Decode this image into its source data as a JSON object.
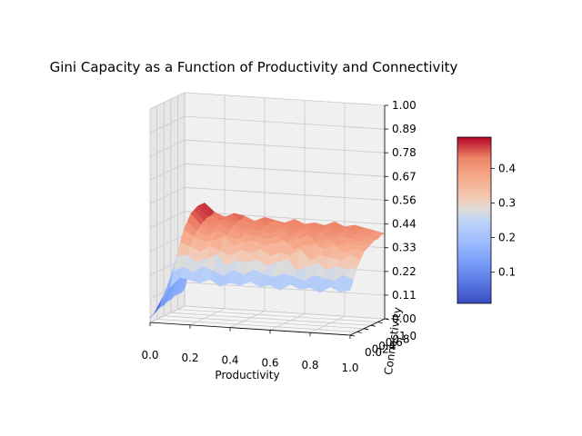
{
  "chart_data": {
    "type": "surface3d",
    "title": "Gini Capacity as a Function of Productivity and Connectivity",
    "xlabel": "Productivity",
    "ylabel": "Connectivity",
    "zlabel": "",
    "xlim": [
      0.0,
      1.0
    ],
    "ylim": [
      0.0,
      1.0
    ],
    "zlim": [
      0.0,
      1.0
    ],
    "x_ticks": [
      "0.0",
      "0.2",
      "0.4",
      "0.6",
      "0.8",
      "1.0"
    ],
    "y_ticks": [
      "0.0",
      "0.2",
      "0.4",
      "0.6",
      "0.8",
      "1.0"
    ],
    "z_ticks": [
      "0.00",
      "0.11",
      "0.22",
      "0.33",
      "0.44",
      "0.56",
      "0.67",
      "0.78",
      "0.89",
      "1.00"
    ],
    "colormap": "coolwarm",
    "colorbar": {
      "min": 0.01,
      "max": 0.49,
      "ticks": [
        "0.1",
        "0.2",
        "0.3",
        "0.4"
      ],
      "tick_values": [
        0.1,
        0.2,
        0.3,
        0.4
      ]
    },
    "surface": {
      "description_values": {
        "x_grid": [
          0.0,
          0.05,
          0.1,
          0.15,
          0.2,
          0.25,
          0.3,
          0.35,
          0.4,
          0.45,
          0.5,
          0.55,
          0.6,
          0.65,
          0.7,
          0.75,
          0.8,
          0.85,
          0.9,
          0.95,
          1.0
        ],
        "y_grid": [
          0.0,
          0.1,
          0.2,
          0.3,
          0.4,
          0.5,
          0.6,
          0.7,
          0.8,
          0.9,
          1.0
        ],
        "z_values": [
          [
            0.02,
            0.08,
            0.17,
            0.22,
            0.21,
            0.2,
            0.22,
            0.19,
            0.21,
            0.2,
            0.22,
            0.2,
            0.21,
            0.19,
            0.22,
            0.2,
            0.21,
            0.19,
            0.22,
            0.2,
            0.21
          ],
          [
            0.03,
            0.12,
            0.24,
            0.26,
            0.24,
            0.27,
            0.25,
            0.23,
            0.26,
            0.24,
            0.27,
            0.25,
            0.24,
            0.26,
            0.25,
            0.23,
            0.26,
            0.25,
            0.24,
            0.27,
            0.25
          ],
          [
            0.04,
            0.15,
            0.3,
            0.31,
            0.28,
            0.3,
            0.32,
            0.27,
            0.3,
            0.29,
            0.31,
            0.28,
            0.3,
            0.32,
            0.27,
            0.29,
            0.31,
            0.28,
            0.3,
            0.29,
            0.3
          ],
          [
            0.05,
            0.18,
            0.36,
            0.34,
            0.32,
            0.35,
            0.33,
            0.31,
            0.34,
            0.33,
            0.35,
            0.32,
            0.34,
            0.33,
            0.36,
            0.31,
            0.34,
            0.33,
            0.32,
            0.35,
            0.33
          ],
          [
            0.05,
            0.2,
            0.41,
            0.38,
            0.36,
            0.37,
            0.39,
            0.35,
            0.37,
            0.38,
            0.36,
            0.37,
            0.39,
            0.35,
            0.37,
            0.38,
            0.36,
            0.38,
            0.35,
            0.37,
            0.36
          ],
          [
            0.06,
            0.22,
            0.44,
            0.4,
            0.38,
            0.41,
            0.39,
            0.37,
            0.4,
            0.39,
            0.38,
            0.4,
            0.37,
            0.39,
            0.41,
            0.38,
            0.4,
            0.37,
            0.39,
            0.38,
            0.37
          ],
          [
            0.06,
            0.23,
            0.47,
            0.42,
            0.4,
            0.43,
            0.41,
            0.39,
            0.42,
            0.41,
            0.4,
            0.42,
            0.39,
            0.41,
            0.4,
            0.42,
            0.39,
            0.41,
            0.4,
            0.39,
            0.38
          ],
          [
            0.07,
            0.24,
            0.48,
            0.43,
            0.41,
            0.44,
            0.42,
            0.4,
            0.43,
            0.42,
            0.41,
            0.43,
            0.4,
            0.42,
            0.41,
            0.43,
            0.4,
            0.42,
            0.41,
            0.4,
            0.39
          ],
          [
            0.07,
            0.24,
            0.49,
            0.44,
            0.42,
            0.44,
            0.43,
            0.41,
            0.44,
            0.42,
            0.41,
            0.43,
            0.41,
            0.43,
            0.42,
            0.44,
            0.41,
            0.42,
            0.41,
            0.4,
            0.39
          ],
          [
            0.07,
            0.25,
            0.49,
            0.44,
            0.42,
            0.45,
            0.43,
            0.41,
            0.44,
            0.43,
            0.42,
            0.44,
            0.41,
            0.43,
            0.42,
            0.44,
            0.41,
            0.43,
            0.42,
            0.41,
            0.4
          ],
          [
            0.08,
            0.25,
            0.49,
            0.45,
            0.43,
            0.45,
            0.44,
            0.42,
            0.44,
            0.43,
            0.42,
            0.44,
            0.42,
            0.43,
            0.42,
            0.44,
            0.42,
            0.43,
            0.42,
            0.41,
            0.4
          ]
        ]
      }
    }
  }
}
